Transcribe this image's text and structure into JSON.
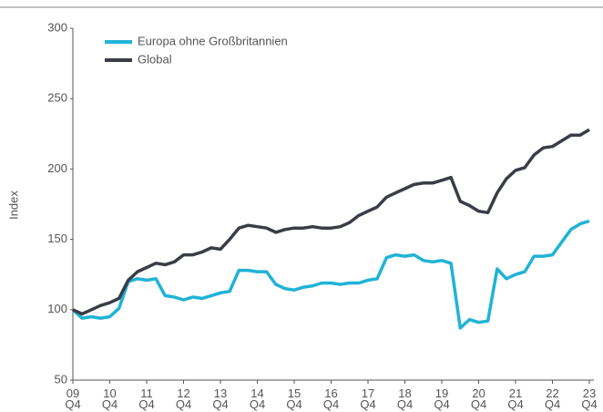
{
  "chart_data": {
    "type": "line",
    "y_label": "Index",
    "categories": [
      "09\nQ4",
      null,
      null,
      null,
      "10\nQ4",
      null,
      null,
      null,
      "11\nQ4",
      null,
      null,
      null,
      "12\nQ4",
      null,
      null,
      null,
      "13\nQ4",
      null,
      null,
      null,
      "14\nQ4",
      null,
      null,
      null,
      "15\nQ4",
      null,
      null,
      null,
      "16\nQ4",
      null,
      null,
      null,
      "17\nQ4",
      null,
      null,
      null,
      "18\nQ4",
      null,
      null,
      null,
      "19\nQ4",
      null,
      null,
      null,
      "20\nQ4",
      null,
      null,
      null,
      "21\nQ4",
      null,
      null,
      null,
      "22\nQ4",
      null,
      null,
      null,
      "23\nQ4"
    ],
    "series": [
      {
        "name": "Europa ohne Großbritannien",
        "color": "#1fb3d6",
        "values": [
          100,
          94,
          95,
          94,
          95,
          101,
          120,
          122,
          121,
          122,
          110,
          109,
          107,
          109,
          108,
          110,
          112,
          113,
          128,
          128,
          127,
          127,
          118,
          115,
          114,
          116,
          117,
          119,
          119,
          118,
          119,
          119,
          121,
          122,
          137,
          139,
          138,
          139,
          135,
          134,
          135,
          133,
          87,
          93,
          91,
          92,
          129,
          122,
          125,
          127,
          138,
          138,
          139,
          148,
          157,
          161,
          163
        ]
      },
      {
        "name": "Global",
        "color": "#3a3d45",
        "values": [
          100,
          97,
          100,
          103,
          105,
          108,
          121,
          127,
          130,
          133,
          132,
          134,
          139,
          139,
          141,
          144,
          143,
          150,
          158,
          160,
          159,
          158,
          155,
          157,
          158,
          158,
          159,
          158,
          158,
          159,
          162,
          167,
          170,
          173,
          180,
          183,
          186,
          189,
          190,
          190,
          192,
          194,
          177,
          174,
          170,
          169,
          183,
          193,
          199,
          201,
          210,
          215,
          216,
          220,
          224,
          224,
          228
        ]
      }
    ],
    "ylim": [
      50,
      300
    ],
    "yticks": [
      50,
      100,
      150,
      200,
      250,
      300
    ],
    "grid": false,
    "legend": "top-left"
  }
}
